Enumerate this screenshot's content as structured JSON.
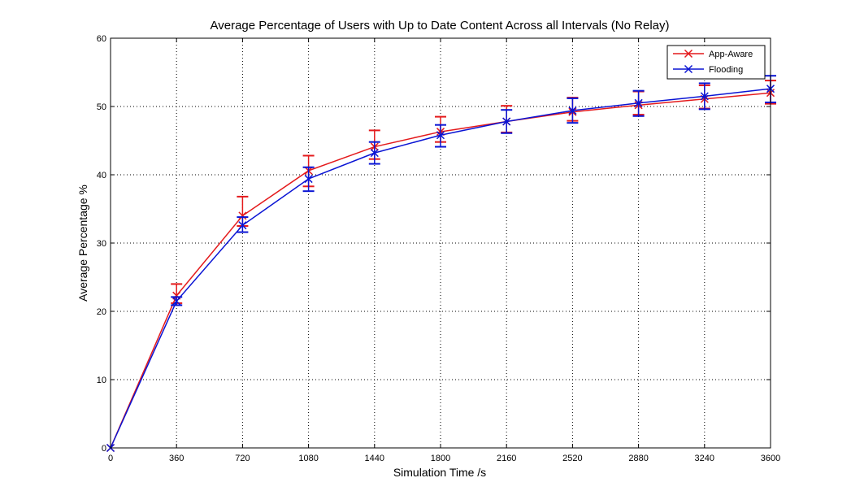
{
  "chart_data": {
    "type": "line",
    "title": "Average Percentage of Users with Up to Date Content Across all Intervals (No Relay)",
    "xlabel": "Simulation Time /s",
    "ylabel": "Average Percentage %",
    "xlim": [
      0,
      3600
    ],
    "ylim": [
      0,
      60
    ],
    "xticks": [
      0,
      360,
      720,
      1080,
      1440,
      1800,
      2160,
      2520,
      2880,
      3240,
      3600
    ],
    "yticks": [
      0,
      10,
      20,
      30,
      40,
      50,
      60
    ],
    "grid": true,
    "legend_position": "top-right",
    "series": [
      {
        "name": "App-Aware",
        "color": "#e41a1c",
        "marker": "x",
        "x": [
          0,
          360,
          720,
          1080,
          1440,
          1800,
          2160,
          2520,
          2880,
          3240,
          3600
        ],
        "y": [
          0,
          22.3,
          34.0,
          40.6,
          44.1,
          46.3,
          47.8,
          49.2,
          50.2,
          51.1,
          52.0
        ],
        "err_low": [
          0,
          21.2,
          32.5,
          38.3,
          42.3,
          44.8,
          46.2,
          47.9,
          48.8,
          49.7,
          50.4
        ],
        "err_high": [
          0,
          24.0,
          36.8,
          42.8,
          46.5,
          48.5,
          50.1,
          51.3,
          52.2,
          53.1,
          53.8
        ]
      },
      {
        "name": "Flooding",
        "color": "#0a14d4",
        "marker": "x",
        "x": [
          0,
          360,
          720,
          1080,
          1440,
          1800,
          2160,
          2520,
          2880,
          3240,
          3600
        ],
        "y": [
          0,
          21.5,
          32.6,
          39.4,
          43.2,
          45.8,
          47.8,
          49.4,
          50.5,
          51.5,
          52.6
        ],
        "err_low": [
          0,
          20.9,
          31.6,
          37.6,
          41.6,
          44.1,
          46.1,
          47.6,
          48.6,
          49.6,
          50.6
        ],
        "err_high": [
          0,
          22.1,
          33.8,
          41.1,
          44.8,
          47.3,
          49.5,
          51.2,
          52.3,
          53.4,
          54.5
        ]
      }
    ]
  }
}
